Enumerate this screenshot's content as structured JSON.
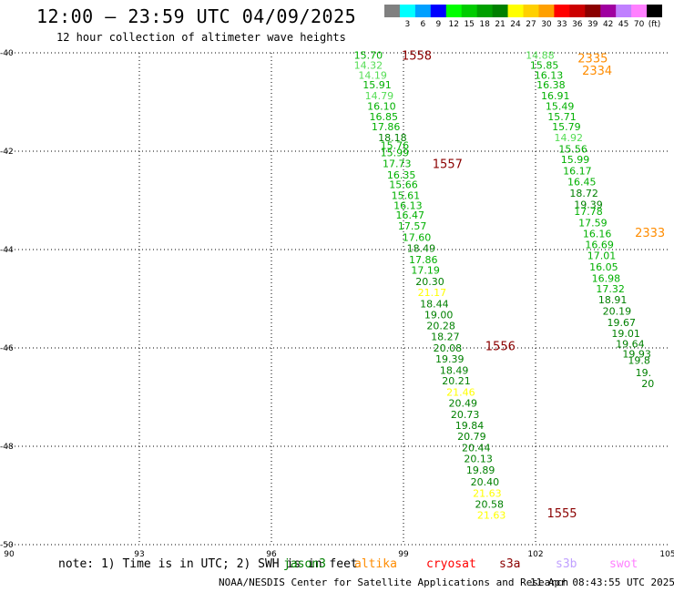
{
  "header": {
    "title": "12:00 — 23:59 UTC 04/09/2025",
    "subtitle": "12 hour collection of altimeter wave heights"
  },
  "colorbar": {
    "bins": [
      {
        "label": "",
        "color": "#808080"
      },
      {
        "label": "3",
        "color": "#00ffff"
      },
      {
        "label": "6",
        "color": "#00a0ff"
      },
      {
        "label": "9",
        "color": "#0000ff"
      },
      {
        "label": "12",
        "color": "#00ff00"
      },
      {
        "label": "15",
        "color": "#00cc00"
      },
      {
        "label": "18",
        "color": "#00a000"
      },
      {
        "label": "21",
        "color": "#008000"
      },
      {
        "label": "24",
        "color": "#ffff00"
      },
      {
        "label": "27",
        "color": "#ffd000"
      },
      {
        "label": "30",
        "color": "#ffa000"
      },
      {
        "label": "33",
        "color": "#ff0000"
      },
      {
        "label": "36",
        "color": "#cc0000"
      },
      {
        "label": "39",
        "color": "#8b0000"
      },
      {
        "label": "42",
        "color": "#a000a0"
      },
      {
        "label": "45",
        "color": "#c080ff"
      },
      {
        "label": "70",
        "color": "#ff80ff"
      },
      {
        "label": "(ft)",
        "color": "#000000"
      }
    ]
  },
  "chart_data": {
    "type": "scatter",
    "title": "12:00 — 23:59 UTC 04/09/2025",
    "subtitle": "12 hour collection of altimeter wave heights",
    "xlim": [
      90,
      105
    ],
    "ylim": [
      -50,
      -40
    ],
    "xticks": [
      "90",
      "93",
      "96",
      "99",
      "102",
      "105"
    ],
    "yticks": [
      "-40",
      "-42",
      "-44",
      "-46",
      "-48",
      "-50"
    ],
    "grid": true,
    "value_colors": {
      "light": "#55dd55",
      "mid": "#00b000",
      "dark": "#008000",
      "yellow": "#ffff00"
    },
    "pass_colors": {
      "s3a": "#8b0000",
      "altika": "#ff8c00"
    },
    "passes": [
      {
        "id": "1558",
        "mission": "s3a",
        "lon": 99.3,
        "lat": -40.05
      },
      {
        "id": "1557",
        "mission": "s3a",
        "lon": 100.0,
        "lat": -42.25
      },
      {
        "id": "1556",
        "mission": "s3a",
        "lon": 101.2,
        "lat": -45.95
      },
      {
        "id": "1555",
        "mission": "s3a",
        "lon": 102.6,
        "lat": -49.35
      },
      {
        "id": "2335",
        "mission": "altika",
        "lon": 103.3,
        "lat": -40.1
      },
      {
        "id": "2334",
        "mission": "altika",
        "lon": 103.4,
        "lat": -40.35
      },
      {
        "id": "2333",
        "mission": "altika",
        "lon": 104.6,
        "lat": -43.65
      }
    ],
    "observations": [
      {
        "v": "15.70",
        "lon": 98.2,
        "lat": -40.05,
        "c": "mid"
      },
      {
        "v": "14.32",
        "lon": 98.2,
        "lat": -40.25,
        "c": "light"
      },
      {
        "v": "14.19",
        "lon": 98.3,
        "lat": -40.45,
        "c": "light"
      },
      {
        "v": "15.91",
        "lon": 98.4,
        "lat": -40.65,
        "c": "mid"
      },
      {
        "v": "14.79",
        "lon": 98.45,
        "lat": -40.87,
        "c": "light"
      },
      {
        "v": "16.10",
        "lon": 98.5,
        "lat": -41.08,
        "c": "mid"
      },
      {
        "v": "16.85",
        "lon": 98.55,
        "lat": -41.3,
        "c": "mid"
      },
      {
        "v": "17.86",
        "lon": 98.6,
        "lat": -41.5,
        "c": "mid"
      },
      {
        "v": "18.18",
        "lon": 98.75,
        "lat": -41.72,
        "c": "dark"
      },
      {
        "v": "15.76",
        "lon": 98.8,
        "lat": -41.88,
        "c": "mid"
      },
      {
        "v": "15.99",
        "lon": 98.8,
        "lat": -42.03,
        "c": "mid"
      },
      {
        "v": "17.73",
        "lon": 98.85,
        "lat": -42.25,
        "c": "mid"
      },
      {
        "v": "16.35",
        "lon": 98.95,
        "lat": -42.48,
        "c": "mid"
      },
      {
        "v": "15.66",
        "lon": 99.0,
        "lat": -42.68,
        "c": "mid"
      },
      {
        "v": "15.61",
        "lon": 99.05,
        "lat": -42.9,
        "c": "mid"
      },
      {
        "v": "16.13",
        "lon": 99.1,
        "lat": -43.1,
        "c": "mid"
      },
      {
        "v": "16.47",
        "lon": 99.15,
        "lat": -43.3,
        "c": "mid"
      },
      {
        "v": "17.57",
        "lon": 99.2,
        "lat": -43.52,
        "c": "mid"
      },
      {
        "v": "17.60",
        "lon": 99.3,
        "lat": -43.75,
        "c": "mid"
      },
      {
        "v": "18.49",
        "lon": 99.4,
        "lat": -43.97,
        "c": "dark"
      },
      {
        "v": "17.86",
        "lon": 99.45,
        "lat": -44.2,
        "c": "mid"
      },
      {
        "v": "17.19",
        "lon": 99.5,
        "lat": -44.42,
        "c": "mid"
      },
      {
        "v": "20.30",
        "lon": 99.6,
        "lat": -44.65,
        "c": "dark"
      },
      {
        "v": "21.17",
        "lon": 99.65,
        "lat": -44.87,
        "c": "yellow"
      },
      {
        "v": "18.44",
        "lon": 99.7,
        "lat": -45.1,
        "c": "dark"
      },
      {
        "v": "19.00",
        "lon": 99.8,
        "lat": -45.32,
        "c": "dark"
      },
      {
        "v": "20.28",
        "lon": 99.85,
        "lat": -45.55,
        "c": "dark"
      },
      {
        "v": "18.27",
        "lon": 99.95,
        "lat": -45.77,
        "c": "dark"
      },
      {
        "v": "20.08",
        "lon": 100.0,
        "lat": -46.0,
        "c": "dark"
      },
      {
        "v": "19.39",
        "lon": 100.05,
        "lat": -46.22,
        "c": "dark"
      },
      {
        "v": "18.49",
        "lon": 100.15,
        "lat": -46.45,
        "c": "dark"
      },
      {
        "v": "20.21",
        "lon": 100.2,
        "lat": -46.67,
        "c": "dark"
      },
      {
        "v": "21.46",
        "lon": 100.3,
        "lat": -46.9,
        "c": "yellow"
      },
      {
        "v": "20.49",
        "lon": 100.35,
        "lat": -47.12,
        "c": "dark"
      },
      {
        "v": "20.73",
        "lon": 100.4,
        "lat": -47.35,
        "c": "dark"
      },
      {
        "v": "19.84",
        "lon": 100.5,
        "lat": -47.57,
        "c": "dark"
      },
      {
        "v": "20.79",
        "lon": 100.55,
        "lat": -47.8,
        "c": "dark"
      },
      {
        "v": "20.44",
        "lon": 100.65,
        "lat": -48.03,
        "c": "dark"
      },
      {
        "v": "20.13",
        "lon": 100.7,
        "lat": -48.25,
        "c": "dark"
      },
      {
        "v": "19.89",
        "lon": 100.75,
        "lat": -48.48,
        "c": "dark"
      },
      {
        "v": "20.40",
        "lon": 100.85,
        "lat": -48.72,
        "c": "dark"
      },
      {
        "v": "21.63",
        "lon": 100.9,
        "lat": -48.95,
        "c": "yellow"
      },
      {
        "v": "20.58",
        "lon": 100.95,
        "lat": -49.18,
        "c": "dark"
      },
      {
        "v": "21.63",
        "lon": 101.0,
        "lat": -49.4,
        "c": "yellow"
      },
      {
        "v": "14.88",
        "lon": 102.1,
        "lat": -40.05,
        "c": "light"
      },
      {
        "v": "15.85",
        "lon": 102.2,
        "lat": -40.25,
        "c": "mid"
      },
      {
        "v": "16.13",
        "lon": 102.3,
        "lat": -40.45,
        "c": "mid"
      },
      {
        "v": "16.38",
        "lon": 102.35,
        "lat": -40.65,
        "c": "mid"
      },
      {
        "v": "16.91",
        "lon": 102.45,
        "lat": -40.87,
        "c": "mid"
      },
      {
        "v": "15.49",
        "lon": 102.55,
        "lat": -41.08,
        "c": "mid"
      },
      {
        "v": "15.71",
        "lon": 102.6,
        "lat": -41.3,
        "c": "mid"
      },
      {
        "v": "15.79",
        "lon": 102.7,
        "lat": -41.5,
        "c": "mid"
      },
      {
        "v": "14.92",
        "lon": 102.75,
        "lat": -41.72,
        "c": "light"
      },
      {
        "v": "15.56",
        "lon": 102.85,
        "lat": -41.95,
        "c": "mid"
      },
      {
        "v": "15.99",
        "lon": 102.9,
        "lat": -42.17,
        "c": "mid"
      },
      {
        "v": "16.17",
        "lon": 102.95,
        "lat": -42.4,
        "c": "mid"
      },
      {
        "v": "16.45",
        "lon": 103.05,
        "lat": -42.62,
        "c": "mid"
      },
      {
        "v": "18.72",
        "lon": 103.1,
        "lat": -42.85,
        "c": "dark"
      },
      {
        "v": "19.39",
        "lon": 103.2,
        "lat": -43.08,
        "c": "dark"
      },
      {
        "v": "17.78",
        "lon": 103.2,
        "lat": -43.22,
        "c": "mid"
      },
      {
        "v": "17.59",
        "lon": 103.3,
        "lat": -43.45,
        "c": "mid"
      },
      {
        "v": "16.16",
        "lon": 103.4,
        "lat": -43.68,
        "c": "mid"
      },
      {
        "v": "16.69",
        "lon": 103.45,
        "lat": -43.9,
        "c": "mid"
      },
      {
        "v": "17.01",
        "lon": 103.5,
        "lat": -44.12,
        "c": "mid"
      },
      {
        "v": "16.05",
        "lon": 103.55,
        "lat": -44.35,
        "c": "mid"
      },
      {
        "v": "16.98",
        "lon": 103.6,
        "lat": -44.58,
        "c": "mid"
      },
      {
        "v": "17.32",
        "lon": 103.7,
        "lat": -44.8,
        "c": "mid"
      },
      {
        "v": "18.91",
        "lon": 103.75,
        "lat": -45.02,
        "c": "dark"
      },
      {
        "v": "20.19",
        "lon": 103.85,
        "lat": -45.25,
        "c": "dark"
      },
      {
        "v": "19.67",
        "lon": 103.95,
        "lat": -45.48,
        "c": "dark"
      },
      {
        "v": "19.01",
        "lon": 104.05,
        "lat": -45.7,
        "c": "dark"
      },
      {
        "v": "19.64",
        "lon": 104.15,
        "lat": -45.92,
        "c": "dark"
      },
      {
        "v": "19.93",
        "lon": 104.3,
        "lat": -46.12,
        "c": "dark"
      },
      {
        "v": "19.8",
        "lon": 104.35,
        "lat": -46.25,
        "c": "dark"
      },
      {
        "v": "19.",
        "lon": 104.45,
        "lat": -46.5,
        "c": "dark"
      },
      {
        "v": "20",
        "lon": 104.55,
        "lat": -46.72,
        "c": "dark"
      }
    ]
  },
  "note": "note: 1) Time is in UTC; 2) SWH is in feet",
  "legend": {
    "missions": [
      {
        "label": "jason3",
        "color": "#008000"
      },
      {
        "label": "altika",
        "color": "#ff8c00"
      },
      {
        "label": "cryosat",
        "color": "#ff0000"
      },
      {
        "label": "s3a",
        "color": "#8b0000"
      },
      {
        "label": "s3b",
        "color": "#c0a0ff"
      },
      {
        "label": "swot",
        "color": "#ff80ff"
      }
    ]
  },
  "footer": {
    "credit": "NOAA/NESDIS Center for Satellite Applications and Research",
    "date": "11 Apr 08:43:55 UTC 2025"
  }
}
